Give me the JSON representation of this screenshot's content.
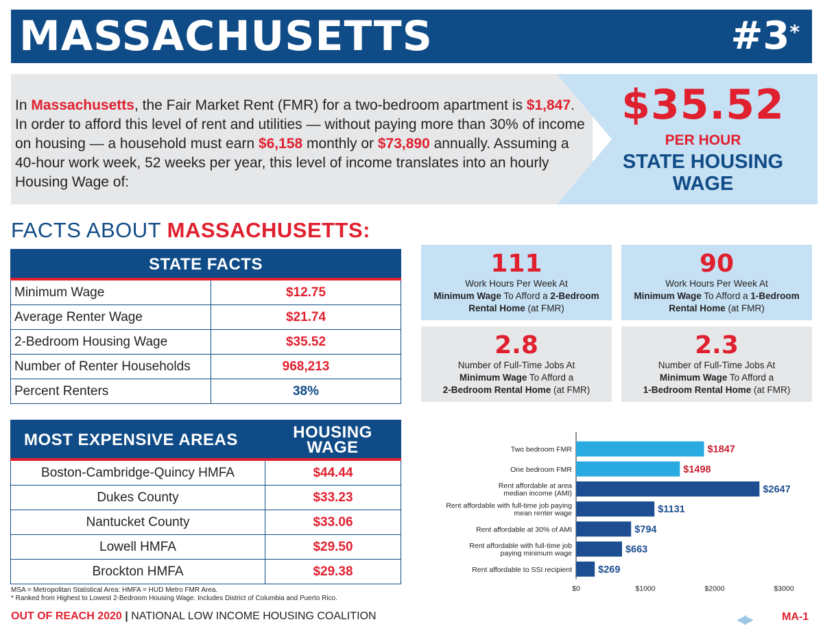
{
  "header": {
    "title": "MASSACHUSETTS",
    "rank": "#3",
    "rank_mark": "*"
  },
  "intro": {
    "p1": "In ",
    "state": "Massachusetts",
    "p2": ", the Fair Market Rent (FMR) for a two-bedroom apartment is ",
    "fmr": "$1,847",
    "p3": ". In order to afford this level of rent and utilities — without paying more than 30% of income on housing — a household must earn ",
    "monthly": "$6,158",
    "p4": " monthly or ",
    "annual": "$73,890",
    "p5": " annually. Assuming a 40-hour work week, 52 weeks per year, this level of income translates into an hourly Housing Wage of:"
  },
  "housing_wage": {
    "value": "$35.52",
    "per_hour": "PER HOUR",
    "label": "STATE HOUSING WAGE"
  },
  "facts_heading": {
    "prefix": "FACTS ABOUT ",
    "state": "MASSACHUSETTS:"
  },
  "state_facts": {
    "title": "STATE FACTS",
    "rows": [
      {
        "label": "Minimum Wage",
        "value": "$12.75"
      },
      {
        "label": "Average Renter Wage",
        "value": "$21.74"
      },
      {
        "label": "2-Bedroom Housing Wage",
        "value": "$35.52"
      },
      {
        "label": "Number of Renter Households",
        "value": "968,213"
      },
      {
        "label": "Percent Renters",
        "value": "38%"
      }
    ]
  },
  "areas": {
    "col1": "MOST EXPENSIVE AREAS",
    "col2_line1": "HOUSING",
    "col2_line2": "WAGE",
    "rows": [
      {
        "label": "Boston-Cambridge-Quincy HMFA",
        "value": "$44.44"
      },
      {
        "label": "Dukes County",
        "value": "$33.23"
      },
      {
        "label": "Nantucket County",
        "value": "$33.06"
      },
      {
        "label": "Lowell HMFA",
        "value": "$29.50"
      },
      {
        "label": "Brockton HMFA",
        "value": "$29.38"
      }
    ]
  },
  "notes": {
    "line1": "MSA = Metropolitan Statistical Area: HMFA = HUD Metro FMR Area.",
    "line2": "* Ranked from Highest to Lowest 2-Bedroom Housing Wage. Includes District of Columbia and Puerto Rico."
  },
  "footer": {
    "report": "OUT OF REACH 2020",
    "sep": "|",
    "org": "NATIONAL LOW INCOME HOUSING COALITION",
    "nav": "◀▶",
    "page": "MA-1"
  },
  "stats": [
    {
      "num": "111",
      "l1": "Work Hours Per Week At",
      "l2b": "Minimum Wage",
      "l2": " To Afford a ",
      "l2b2": "2-Bedroom",
      "l3b": "Rental Home",
      "l3": " (at FMR)"
    },
    {
      "num": "90",
      "l1": "Work Hours Per Week At",
      "l2b": "Minimum Wage",
      "l2": " To Afford a ",
      "l2b2": "1-Bedroom",
      "l3b": "Rental Home",
      "l3": " (at FMR)"
    },
    {
      "num": "2.8",
      "l1": "Number of Full-Time Jobs At",
      "l2b": "Minimum Wage",
      "l2": " To Afford a",
      "l2b2": "",
      "l3b": "2-Bedroom Rental Home",
      "l3": " (at FMR)"
    },
    {
      "num": "2.3",
      "l1": "Number of Full-Time Jobs At",
      "l2b": "Minimum Wage",
      "l2": " To Afford a",
      "l2b2": "",
      "l3b": "1-Bedroom Rental Home",
      "l3": " (at FMR)"
    }
  ],
  "chart_data": {
    "type": "bar",
    "orientation": "horizontal",
    "categories": [
      [
        "Two bedroom FMR"
      ],
      [
        "One bedroom FMR"
      ],
      [
        "Rent affordable at area",
        "median income (AMI)"
      ],
      [
        "Rent affordable with full-time job paying",
        "mean renter wage"
      ],
      [
        "Rent affordable at 30% of AMI"
      ],
      [
        "Rent affordable with full-time job",
        "paying minimum wage"
      ],
      [
        "Rent affordable to SSI recipient"
      ]
    ],
    "values": [
      1847,
      1498,
      2647,
      1131,
      794,
      663,
      269
    ],
    "value_labels": [
      "$1847",
      "$1498",
      "$2647",
      "$1131",
      "$794",
      "$663",
      "$269"
    ],
    "bar_colors": [
      "#29abe2",
      "#29abe2",
      "#1d4e91",
      "#1d4e91",
      "#1d4e91",
      "#1d4e91",
      "#1d4e91"
    ],
    "label_colors": [
      "#c8202f",
      "#c8202f",
      "#1d4e91",
      "#1d4e91",
      "#1d4e91",
      "#1d4e91",
      "#1d4e91"
    ],
    "xlim": [
      0,
      3000
    ],
    "xticks": [
      0,
      1000,
      2000,
      3000
    ],
    "xtick_labels": [
      "$0",
      "$1000",
      "$2000",
      "$3000"
    ],
    "grid": false
  }
}
